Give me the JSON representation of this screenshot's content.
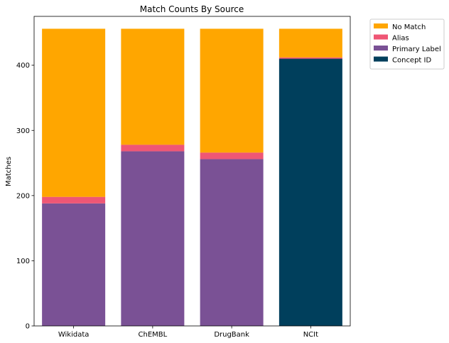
{
  "chart_data": {
    "type": "bar",
    "stacked": true,
    "title": "Match Counts By Source",
    "xlabel": "",
    "ylabel": "Matches",
    "ylim": [
      0,
      475
    ],
    "yticks": [
      0,
      100,
      200,
      300,
      400
    ],
    "categories": [
      "Wikidata",
      "ChEMBL",
      "DrugBank",
      "NCIt"
    ],
    "series": [
      {
        "name": "Concept ID",
        "color": "#003f5c",
        "values": [
          0,
          0,
          0,
          410
        ]
      },
      {
        "name": "Primary Label",
        "color": "#7a5195",
        "values": [
          188,
          268,
          256,
          0
        ]
      },
      {
        "name": "Alias",
        "color": "#ef5675",
        "values": [
          10,
          10,
          10,
          2
        ]
      },
      {
        "name": "No Match",
        "color": "#ffa600",
        "values": [
          258,
          178,
          190,
          44
        ]
      }
    ],
    "legend_order": [
      "No Match",
      "Alias",
      "Primary Label",
      "Concept ID"
    ],
    "legend_position": "outside-top-right",
    "grid": false
  }
}
